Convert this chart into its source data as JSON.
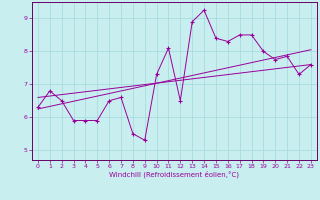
{
  "title": "",
  "xlabel": "Windchill (Refroidissement éolien,°C)",
  "xlim": [
    -0.5,
    23.5
  ],
  "ylim": [
    4.7,
    9.5
  ],
  "yticks": [
    5,
    6,
    7,
    8,
    9
  ],
  "xticks": [
    0,
    1,
    2,
    3,
    4,
    5,
    6,
    7,
    8,
    9,
    10,
    11,
    12,
    13,
    14,
    15,
    16,
    17,
    18,
    19,
    20,
    21,
    22,
    23
  ],
  "bg_color": "#c8eef0",
  "line_color": "#990099",
  "line1_x": [
    0,
    1,
    2,
    3,
    4,
    5,
    6,
    7,
    8,
    9,
    10,
    11,
    12,
    13,
    14,
    15,
    16,
    17,
    18,
    19,
    20,
    21,
    22,
    23
  ],
  "line1_y": [
    6.3,
    6.8,
    6.5,
    5.9,
    5.9,
    5.9,
    6.5,
    6.6,
    5.5,
    5.3,
    7.3,
    8.1,
    6.5,
    8.9,
    9.25,
    8.4,
    8.3,
    8.5,
    8.5,
    8.0,
    7.75,
    7.85,
    7.3,
    7.6
  ],
  "line2_x": [
    0,
    23
  ],
  "line2_y": [
    6.25,
    8.05
  ],
  "line3_x": [
    0,
    23
  ],
  "line3_y": [
    6.6,
    7.6
  ],
  "grid_color": "#a8dde0",
  "spine_color": "#660066"
}
